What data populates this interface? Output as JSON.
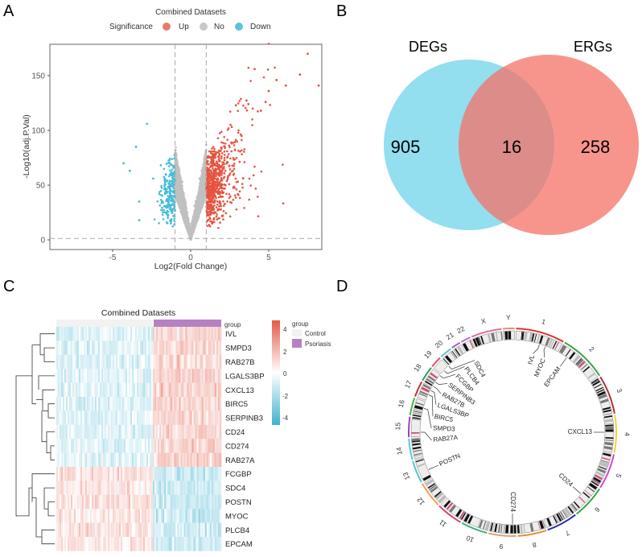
{
  "panel_labels": {
    "a": "A",
    "b": "B",
    "c": "C",
    "d": "D"
  },
  "chart_data": [
    {
      "type": "scatter",
      "panel": "A",
      "title": "Combined Datasets",
      "legend": {
        "title": "Significance",
        "placement": "top",
        "entries": [
          {
            "label": "Up",
            "color": "#E8796F"
          },
          {
            "label": "No",
            "color": "#C8C8C8"
          },
          {
            "label": "Down",
            "color": "#5BC4DB"
          }
        ]
      },
      "xlabel": "Log2(Fold Change)",
      "ylabel": "-Log10(adj.P.Val)",
      "xlim": [
        -8.5,
        8.5
      ],
      "ylim": [
        -8,
        175
      ],
      "xticks": [
        "-5",
        "0",
        "5"
      ],
      "yticks": [
        "0",
        "50",
        "100",
        "150"
      ],
      "thresholds": {
        "logfc": 1,
        "neglog10_p": 1.3
      },
      "colors": {
        "up": "#E5533F",
        "no": "#C0C0C0",
        "down": "#44BCD8"
      },
      "n_points": {
        "up": 700,
        "no": 6000,
        "down": 220
      },
      "outliers_up": [
        [
          7.5,
          170
        ],
        [
          8.2,
          141
        ],
        [
          7,
          151
        ],
        [
          5.5,
          146
        ],
        [
          4.1,
          156
        ],
        [
          6.1,
          141
        ],
        [
          5,
          136
        ],
        [
          4.8,
          126
        ],
        [
          3.7,
          124
        ],
        [
          2.9,
          123
        ],
        [
          4.5,
          118
        ]
      ],
      "outliers_down": [
        [
          -2.8,
          106
        ],
        [
          -3.5,
          85
        ],
        [
          -4.3,
          70
        ],
        [
          -3.9,
          63
        ],
        [
          -3.3,
          35
        ],
        [
          -3.3,
          18
        ],
        [
          -2.4,
          56
        ]
      ]
    },
    {
      "type": "venn",
      "panel": "B",
      "sets": [
        {
          "name": "DEGs",
          "only": "905",
          "color": "#6FD3EA"
        },
        {
          "name": "ERGs",
          "only": "258",
          "color": "#F47267"
        }
      ],
      "intersection": "16"
    },
    {
      "type": "heatmap",
      "panel": "C",
      "title": "Combined Datasets",
      "annotation_label": "group",
      "groups": [
        {
          "name": "Control",
          "color": "#F2F2F2",
          "n": 60
        },
        {
          "name": "Psoriasis",
          "color": "#B681C2",
          "n": 42
        }
      ],
      "legend_title": "group",
      "colorbar": {
        "ticks": [
          "4",
          "2",
          "0",
          "-2",
          "-4"
        ],
        "range": [
          -4.5,
          4.5
        ],
        "low": "#3FB1D0",
        "mid": "#FFFFFF",
        "high": "#E35A47"
      },
      "rows": [
        {
          "gene": "IVL",
          "direction": "up"
        },
        {
          "gene": "SMPD3",
          "direction": "up"
        },
        {
          "gene": "RAB27B",
          "direction": "up"
        },
        {
          "gene": "LGALS3BP",
          "direction": "up"
        },
        {
          "gene": "CXCL13",
          "direction": "up"
        },
        {
          "gene": "BIRC5",
          "direction": "up"
        },
        {
          "gene": "SERPINB3",
          "direction": "up"
        },
        {
          "gene": "CD24",
          "direction": "up"
        },
        {
          "gene": "CD274",
          "direction": "up"
        },
        {
          "gene": "RAB27A",
          "direction": "up"
        },
        {
          "gene": "FCGBP",
          "direction": "down"
        },
        {
          "gene": "SDC4",
          "direction": "down"
        },
        {
          "gene": "POSTN",
          "direction": "down"
        },
        {
          "gene": "MYOC",
          "direction": "down"
        },
        {
          "gene": "PLCB4",
          "direction": "down"
        },
        {
          "gene": "EPCAM",
          "direction": "down"
        }
      ]
    },
    {
      "type": "circos",
      "panel": "D",
      "chromosomes": [
        {
          "name": "1",
          "size": 249,
          "color": "#E0312F"
        },
        {
          "name": "2",
          "size": 243,
          "color": "#3FA14A"
        },
        {
          "name": "3",
          "size": 198,
          "color": "#B22A3A"
        },
        {
          "name": "4",
          "size": 191,
          "color": "#F2D33A"
        },
        {
          "name": "5",
          "size": 181,
          "color": "#D63FD6"
        },
        {
          "name": "6",
          "size": 171,
          "color": "#39A845"
        },
        {
          "name": "7",
          "size": 159,
          "color": "#2F2FA8"
        },
        {
          "name": "8",
          "size": 146,
          "color": "#E0902F"
        },
        {
          "name": "9",
          "size": 141,
          "color": "#E4A07A"
        },
        {
          "name": "10",
          "size": 136,
          "color": "#3DB07A"
        },
        {
          "name": "11",
          "size": 135,
          "color": "#D8436A"
        },
        {
          "name": "12",
          "size": 134,
          "color": "#F0A050"
        },
        {
          "name": "13",
          "size": 115,
          "color": "#50C6C0"
        },
        {
          "name": "14",
          "size": 107,
          "color": "#5AC8D8"
        },
        {
          "name": "15",
          "size": 103,
          "color": "#9A3FB8"
        },
        {
          "name": "16",
          "size": 90,
          "color": "#46B84A"
        },
        {
          "name": "17",
          "size": 81,
          "color": "#C42A3A"
        },
        {
          "name": "18",
          "size": 78,
          "color": "#2E9A5A"
        },
        {
          "name": "19",
          "size": 59,
          "color": "#E05060"
        },
        {
          "name": "20",
          "size": 63,
          "color": "#60C0D8"
        },
        {
          "name": "21",
          "size": 48,
          "color": "#A060C8"
        },
        {
          "name": "22",
          "size": 51,
          "color": "#B070D0"
        },
        {
          "name": "X",
          "size": 155,
          "color": "#E07090"
        },
        {
          "name": "Y",
          "size": 59,
          "color": "#E89060"
        }
      ],
      "genes": [
        {
          "name": "IVL",
          "angle": 17
        },
        {
          "name": "MYOC",
          "angle": 21
        },
        {
          "name": "EPCAM",
          "angle": 36
        },
        {
          "name": "CXCL13",
          "angle": 90
        },
        {
          "name": "CD24",
          "angle": 132
        },
        {
          "name": "CD274",
          "angle": 180
        },
        {
          "name": "POSTN",
          "angle": 246
        },
        {
          "name": "RAB27A",
          "angle": 270
        },
        {
          "name": "SMPD3",
          "angle": 285
        },
        {
          "name": "BIRC5",
          "angle": 294
        },
        {
          "name": "LGALS3BP",
          "angle": 297
        },
        {
          "name": "RAB27B",
          "angle": 300
        },
        {
          "name": "SERPINB3",
          "angle": 303
        },
        {
          "name": "FCGBP",
          "angle": 308
        },
        {
          "name": "PLCB4",
          "angle": 312
        },
        {
          "name": "SDC4",
          "angle": 316
        }
      ]
    }
  ]
}
